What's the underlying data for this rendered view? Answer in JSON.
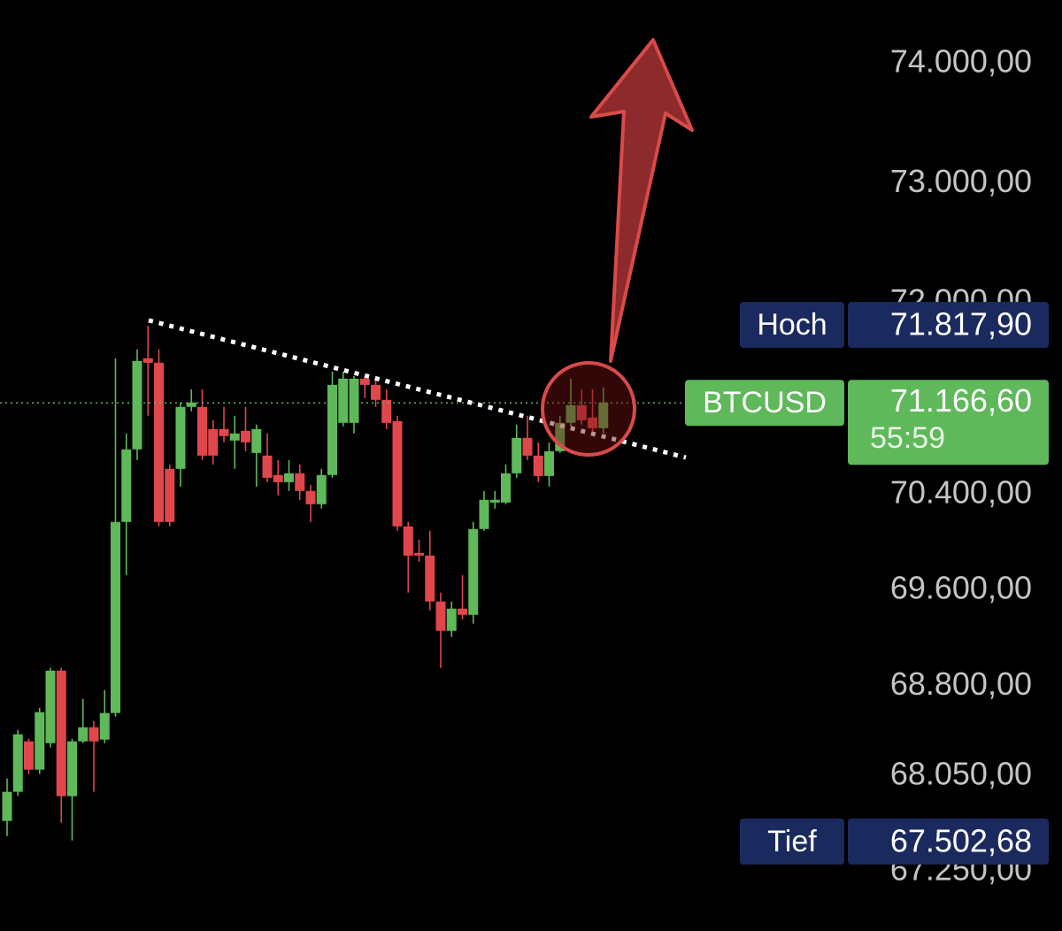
{
  "chart_data": {
    "type": "candlestick",
    "up_color": "#5fb85a",
    "down_color": "#e0474c",
    "ylim": [
      66755,
      74532
    ],
    "yticks": [
      {
        "value": 74000,
        "label": "74.000,00"
      },
      {
        "value": 73000,
        "label": "73.000,00"
      },
      {
        "value": 72000,
        "label": "72.000,00"
      },
      {
        "value": 70400,
        "label": "70.400,00"
      },
      {
        "value": 69600,
        "label": "69.600,00"
      },
      {
        "value": 68800,
        "label": "68.800,00"
      },
      {
        "value": 68050,
        "label": "68.050,00"
      },
      {
        "value": 67250,
        "label": "67.250,00"
      }
    ],
    "open": [
      67674,
      67918,
      68339,
      68103,
      68324,
      68930,
      67881,
      68339,
      68457,
      68354,
      68576,
      70172,
      70778,
      71539,
      71502,
      70615,
      70615,
      71133,
      71133,
      70948,
      70948,
      70852,
      70933,
      70748,
      70726,
      70564,
      70504,
      70578,
      70431,
      70320,
      70564,
      71000,
      71000,
      71369,
      71317,
      71192,
      71014,
      70135,
      69913,
      69891,
      69507,
      69263,
      69448,
      69396,
      70113,
      70334,
      70334,
      70578,
      70874,
      70726,
      70556,
      70763,
      71000,
      71147,
      71044,
      70955
    ],
    "high": [
      68029,
      68435,
      68361,
      68620,
      68953,
      68953,
      68361,
      68694,
      68509,
      68768,
      71539,
      70911,
      71613,
      71810,
      71613,
      70652,
      71170,
      71280,
      71280,
      71022,
      71133,
      71059,
      71133,
      70985,
      70911,
      70689,
      70689,
      70652,
      70482,
      70615,
      71428,
      71428,
      71391,
      71391,
      71369,
      71280,
      71059,
      70172,
      70024,
      70098,
      69581,
      69507,
      69728,
      70172,
      70431,
      70431,
      70652,
      70985,
      71059,
      70837,
      70837,
      71059,
      71369,
      71280,
      71280,
      71295
    ],
    "low": [
      67548,
      67881,
      68066,
      68066,
      68287,
      67659,
      67511,
      68324,
      67918,
      68324,
      68546,
      69728,
      70689,
      71059,
      70135,
      70135,
      70467,
      71096,
      70689,
      70652,
      70837,
      70615,
      70763,
      70467,
      70504,
      70394,
      70431,
      70357,
      70172,
      70283,
      70541,
      70970,
      70911,
      71206,
      71133,
      70948,
      70098,
      69581,
      69839,
      69433,
      68953,
      69211,
      69359,
      69322,
      70098,
      70283,
      70320,
      70541,
      70689,
      70504,
      70467,
      70748,
      70970,
      70985,
      70911,
      70911
    ],
    "close": [
      67918,
      68398,
      68103,
      68583,
      68930,
      67881,
      68339,
      68457,
      68339,
      68576,
      70172,
      70778,
      71517,
      71502,
      70172,
      70172,
      71133,
      71170,
      70726,
      70726,
      70889,
      70911,
      70837,
      70948,
      70541,
      70504,
      70578,
      70431,
      70320,
      70564,
      71317,
      71369,
      71369,
      71317,
      71192,
      71000,
      70135,
      69891,
      69891,
      69507,
      69263,
      69448,
      69396,
      70113,
      70357,
      70357,
      70578,
      70874,
      70726,
      70556,
      70763,
      71000,
      71147,
      71022,
      70955,
      71170
    ],
    "badges": [
      {
        "label": "Hoch",
        "value": 71817.9,
        "value_label": "71.817,90",
        "color": "#1b2a5e"
      },
      {
        "label": "BTCUSD",
        "value": 71166.6,
        "value_label": "71.166,60",
        "countdown": "55:59",
        "color": "#5fb85a"
      },
      {
        "label": "Tief",
        "value": 67502.68,
        "value_label": "67.502,68",
        "color": "#1b2a5e"
      }
    ]
  }
}
